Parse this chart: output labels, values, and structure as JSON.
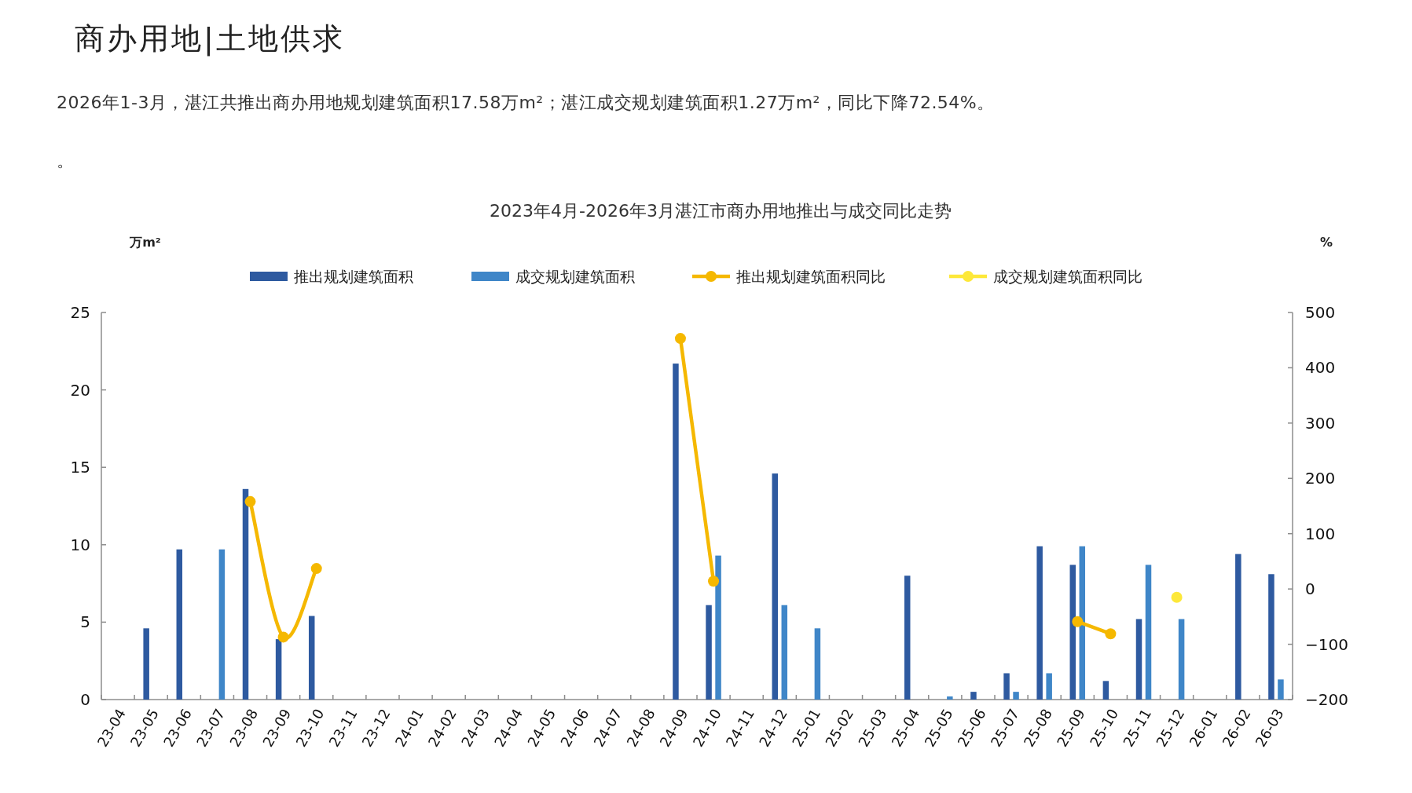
{
  "chart_data": {
    "type": "bar",
    "title": "2023年4月-2026年3月湛江市商办用地推出与成交同比走势",
    "annotations": [
      "商办用地|土地供求",
      "2026年1-3月，湛江共推出商办用地规划建筑面积17.58万m²；湛江成交规划建筑面积1.27万m²，同比下降72.54%。",
      "。"
    ],
    "ylabel": "万m²",
    "y2label": "%",
    "categories": [
      "23-04",
      "23-05",
      "23-06",
      "23-07",
      "23-08",
      "23-09",
      "23-10",
      "23-11",
      "23-12",
      "24-01",
      "24-02",
      "24-03",
      "24-04",
      "24-05",
      "24-06",
      "24-07",
      "24-08",
      "24-09",
      "24-10",
      "24-11",
      "24-12",
      "25-01",
      "25-02",
      "25-03",
      "25-04",
      "25-05",
      "25-06",
      "25-07",
      "25-08",
      "25-09",
      "25-10",
      "25-11",
      "25-12",
      "26-01",
      "26-02",
      "26-03"
    ],
    "series": [
      {
        "name": "推出规划建筑面积",
        "color": "#2e5aa0",
        "values": [
          null,
          4.6,
          9.7,
          null,
          13.6,
          3.9,
          5.4,
          null,
          null,
          null,
          null,
          null,
          null,
          null,
          null,
          null,
          null,
          21.7,
          6.1,
          null,
          14.6,
          null,
          null,
          null,
          8.0,
          null,
          0.5,
          1.7,
          9.9,
          8.7,
          1.2,
          5.2,
          null,
          null,
          9.4,
          8.1
        ]
      },
      {
        "name": "成交规划建筑面积",
        "color": "#3f86c8",
        "values": [
          null,
          null,
          null,
          9.7,
          null,
          null,
          null,
          null,
          null,
          null,
          null,
          null,
          null,
          null,
          null,
          null,
          null,
          null,
          9.3,
          null,
          6.1,
          4.6,
          null,
          null,
          null,
          0.2,
          null,
          0.5,
          1.7,
          9.9,
          null,
          8.7,
          5.2,
          null,
          null,
          1.3
        ]
      },
      {
        "name": "推出规划建筑面积同比",
        "type": "line",
        "axis": "y2",
        "color": "#f5b800",
        "values": [
          null,
          null,
          null,
          null,
          158,
          -87,
          37,
          null,
          null,
          null,
          null,
          null,
          null,
          null,
          null,
          null,
          null,
          453,
          14,
          null,
          null,
          null,
          null,
          null,
          null,
          null,
          null,
          null,
          null,
          -59,
          -81,
          null,
          null,
          null,
          null,
          null
        ]
      },
      {
        "name": "成交规划建筑面积同比",
        "type": "line",
        "axis": "y2",
        "color": "#fde83a",
        "values": [
          null,
          null,
          null,
          null,
          null,
          null,
          null,
          null,
          null,
          null,
          null,
          null,
          null,
          null,
          null,
          null,
          null,
          null,
          null,
          null,
          null,
          null,
          null,
          null,
          null,
          null,
          null,
          null,
          null,
          null,
          null,
          null,
          -15,
          null,
          null,
          null
        ]
      }
    ],
    "ylim": [
      0,
      25
    ],
    "yticks": [
      0,
      5,
      10,
      15,
      20,
      25
    ],
    "y2lim": [
      -200,
      500
    ],
    "y2ticks": [
      -200,
      -100,
      0,
      100,
      200,
      300,
      400,
      500
    ],
    "legend": "top",
    "grid": false,
    "marker": "circle"
  }
}
